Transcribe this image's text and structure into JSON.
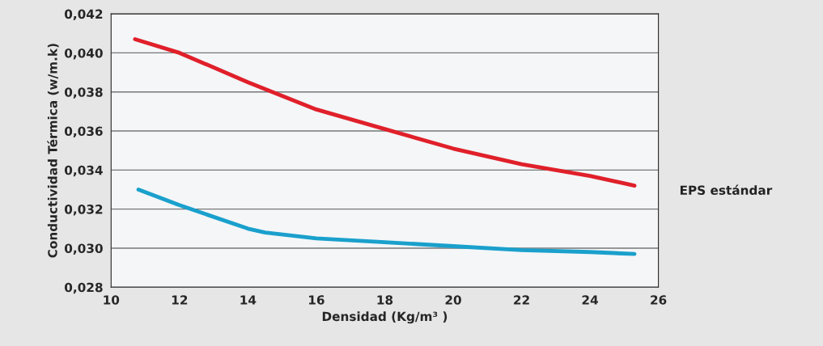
{
  "chart_data": {
    "type": "line",
    "xlabel": "Densidad (Kg/m³ )",
    "ylabel": "Conductividad Térmica (w/m.k)",
    "xlim": [
      10,
      26
    ],
    "xticks": [
      10,
      12,
      14,
      16,
      18,
      20,
      22,
      24,
      26
    ],
    "ylim": [
      0.028,
      0.042
    ],
    "yticks": [
      {
        "value": 0.028,
        "label": "0,028"
      },
      {
        "value": 0.03,
        "label": "0,030"
      },
      {
        "value": 0.032,
        "label": "0,032"
      },
      {
        "value": 0.034,
        "label": "0,034"
      },
      {
        "value": 0.036,
        "label": "0,036"
      },
      {
        "value": 0.038,
        "label": "0,038"
      },
      {
        "value": 0.04,
        "label": "0,040"
      },
      {
        "value": 0.042,
        "label": "0,042"
      }
    ],
    "grid": "y",
    "legend": false,
    "marker": "none",
    "line_style": "solid",
    "series": [
      {
        "name": "EPS estándar",
        "color": "#e0202a",
        "x": [
          10.7,
          12,
          14,
          16,
          18,
          20,
          22,
          24,
          25.3
        ],
        "values": [
          0.0407,
          0.04,
          0.0385,
          0.0371,
          0.0361,
          0.0351,
          0.0343,
          0.0337,
          0.0332
        ]
      },
      {
        "color": "#1aa0cc",
        "x": [
          10.8,
          12,
          14,
          14.5,
          16,
          18,
          20,
          22,
          24,
          25.3
        ],
        "values": [
          0.033,
          0.0322,
          0.031,
          0.0308,
          0.0305,
          0.0303,
          0.0301,
          0.0299,
          0.0298,
          0.0297
        ]
      }
    ]
  }
}
